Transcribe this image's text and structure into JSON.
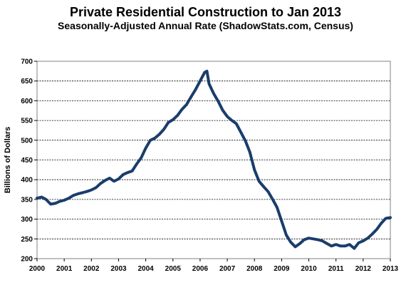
{
  "chart_data": {
    "type": "line",
    "title": "Private Residential Construction to Jan 2013",
    "subtitle": "Seasonally-Adjusted Annual Rate (ShadowStats.com, Census)",
    "xlabel": "",
    "ylabel": "Billions of Dollars",
    "x_tick_labels": [
      "2000",
      "2001",
      "2002",
      "2003",
      "2004",
      "2005",
      "2006",
      "2007",
      "2008",
      "2009",
      "2010",
      "2011",
      "2012",
      "2013"
    ],
    "y_tick_labels": [
      "200",
      "250",
      "300",
      "350",
      "400",
      "450",
      "500",
      "550",
      "600",
      "650",
      "700"
    ],
    "xlim": [
      2000,
      2013
    ],
    "ylim": [
      200,
      700
    ],
    "grid": "horizontal",
    "series": [
      {
        "color": "#1a3d6b",
        "points": [
          [
            2000.0,
            353
          ],
          [
            2000.17,
            356
          ],
          [
            2000.33,
            350
          ],
          [
            2000.5,
            338
          ],
          [
            2000.67,
            340
          ],
          [
            2000.83,
            345
          ],
          [
            2001.0,
            348
          ],
          [
            2001.17,
            353
          ],
          [
            2001.33,
            360
          ],
          [
            2001.5,
            364
          ],
          [
            2001.67,
            367
          ],
          [
            2001.83,
            370
          ],
          [
            2002.0,
            374
          ],
          [
            2002.17,
            380
          ],
          [
            2002.33,
            390
          ],
          [
            2002.5,
            398
          ],
          [
            2002.67,
            404
          ],
          [
            2002.83,
            396
          ],
          [
            2003.0,
            402
          ],
          [
            2003.17,
            413
          ],
          [
            2003.33,
            418
          ],
          [
            2003.5,
            422
          ],
          [
            2003.67,
            440
          ],
          [
            2003.83,
            455
          ],
          [
            2004.0,
            480
          ],
          [
            2004.17,
            500
          ],
          [
            2004.33,
            505
          ],
          [
            2004.5,
            515
          ],
          [
            2004.67,
            528
          ],
          [
            2004.83,
            545
          ],
          [
            2005.0,
            552
          ],
          [
            2005.17,
            563
          ],
          [
            2005.33,
            578
          ],
          [
            2005.5,
            590
          ],
          [
            2005.67,
            610
          ],
          [
            2005.83,
            628
          ],
          [
            2006.0,
            650
          ],
          [
            2006.17,
            672
          ],
          [
            2006.25,
            675
          ],
          [
            2006.33,
            643
          ],
          [
            2006.5,
            618
          ],
          [
            2006.67,
            598
          ],
          [
            2006.83,
            576
          ],
          [
            2007.0,
            560
          ],
          [
            2007.17,
            550
          ],
          [
            2007.33,
            542
          ],
          [
            2007.5,
            520
          ],
          [
            2007.67,
            498
          ],
          [
            2007.83,
            470
          ],
          [
            2008.0,
            425
          ],
          [
            2008.17,
            396
          ],
          [
            2008.33,
            383
          ],
          [
            2008.5,
            370
          ],
          [
            2008.67,
            350
          ],
          [
            2008.83,
            330
          ],
          [
            2009.0,
            295
          ],
          [
            2009.17,
            260
          ],
          [
            2009.33,
            242
          ],
          [
            2009.5,
            230
          ],
          [
            2009.67,
            238
          ],
          [
            2009.83,
            248
          ],
          [
            2010.0,
            252
          ],
          [
            2010.17,
            250
          ],
          [
            2010.33,
            248
          ],
          [
            2010.5,
            245
          ],
          [
            2010.67,
            238
          ],
          [
            2010.83,
            232
          ],
          [
            2011.0,
            236
          ],
          [
            2011.17,
            232
          ],
          [
            2011.33,
            232
          ],
          [
            2011.5,
            236
          ],
          [
            2011.67,
            226
          ],
          [
            2011.83,
            240
          ],
          [
            2012.0,
            245
          ],
          [
            2012.17,
            252
          ],
          [
            2012.33,
            262
          ],
          [
            2012.5,
            274
          ],
          [
            2012.67,
            290
          ],
          [
            2012.83,
            302
          ],
          [
            2013.0,
            304
          ]
        ]
      }
    ]
  }
}
